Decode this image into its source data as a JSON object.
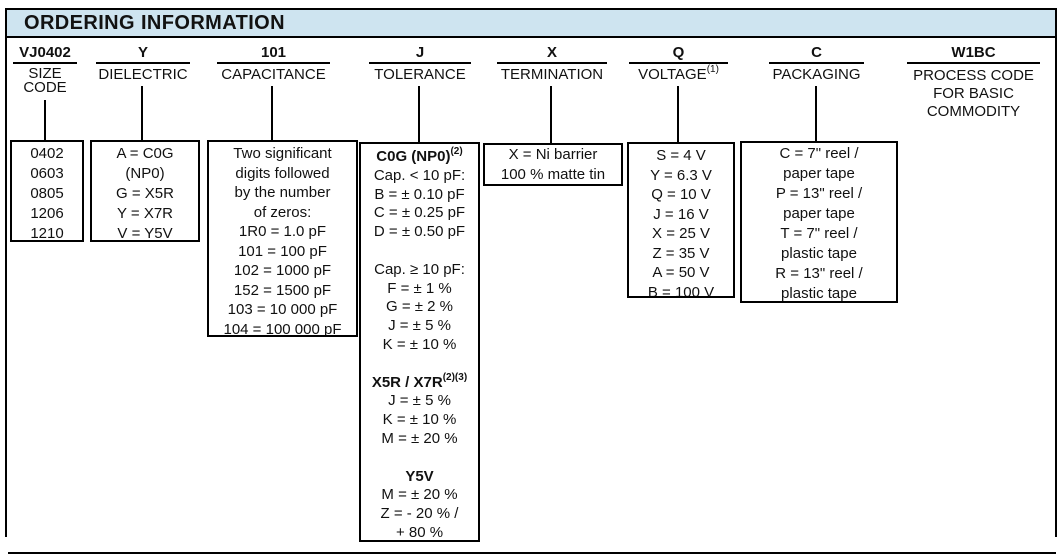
{
  "title": "ORDERING INFORMATION",
  "colors": {
    "title_bar_bg": "#cee4f0",
    "border": "#000000",
    "text": "#111111"
  },
  "columns": [
    {
      "code": "VJ0402",
      "label": "SIZE\nCODE",
      "box_text": "0402\n0603\n0805\n1206\n1210"
    },
    {
      "code": "Y",
      "label": "DIELECTRIC",
      "box_text": "A = C0G\n(NP0)\nG = X5R\nY = X7R\nV = Y5V"
    },
    {
      "code": "101",
      "label": "CAPACITANCE",
      "box_text": "Two significant\ndigits followed\nby the number\nof zeros:\n1R0 = 1.0 pF\n101 = 100 pF\n102 = 1000 pF\n152 = 1500 pF\n103 = 10 000 pF\n104 = 100 000 pF"
    },
    {
      "code": "J",
      "label": "TOLERANCE",
      "box_lines": [
        {
          "text": "C0G (NP0)",
          "bold": true,
          "sup": "(2)"
        },
        {
          "text": "Cap. < 10 pF:"
        },
        {
          "text": "B = ± 0.10 pF"
        },
        {
          "text": "C = ± 0.25 pF"
        },
        {
          "text": "D = ± 0.50 pF"
        },
        {
          "text": ""
        },
        {
          "text": "Cap. ≥ 10 pF:"
        },
        {
          "text": "F = ± 1 %"
        },
        {
          "text": "G = ± 2 %"
        },
        {
          "text": "J = ± 5 %"
        },
        {
          "text": "K = ± 10 %"
        },
        {
          "text": ""
        },
        {
          "text": "X5R / X7R",
          "bold": true,
          "sup": "(2)(3)"
        },
        {
          "text": "J = ± 5 %"
        },
        {
          "text": "K = ± 10 %"
        },
        {
          "text": "M = ± 20 %"
        },
        {
          "text": ""
        },
        {
          "text": "Y5V",
          "bold": true
        },
        {
          "text": "M = ± 20 %"
        },
        {
          "text": "Z = - 20 % /"
        },
        {
          "text": "+ 80 %"
        }
      ]
    },
    {
      "code": "X",
      "label": "TERMINATION",
      "box_text": "X = Ni barrier\n100 % matte tin"
    },
    {
      "code": "Q",
      "label": "VOLTAGE",
      "label_sup": "(1)",
      "box_text": "S = 4 V\nY = 6.3 V\nQ = 10 V\nJ = 16 V\nX = 25 V\nZ = 35 V\nA = 50 V\nB = 100 V"
    },
    {
      "code": "C",
      "label": "PACKAGING",
      "box_text": "C = 7\" reel /\npaper tape\nP = 13\" reel /\npaper tape\nT = 7\" reel /\nplastic tape\nR = 13\" reel /\nplastic tape"
    },
    {
      "code": "W1BC",
      "label": "PROCESS CODE\nFOR BASIC\nCOMMODITY"
    }
  ]
}
